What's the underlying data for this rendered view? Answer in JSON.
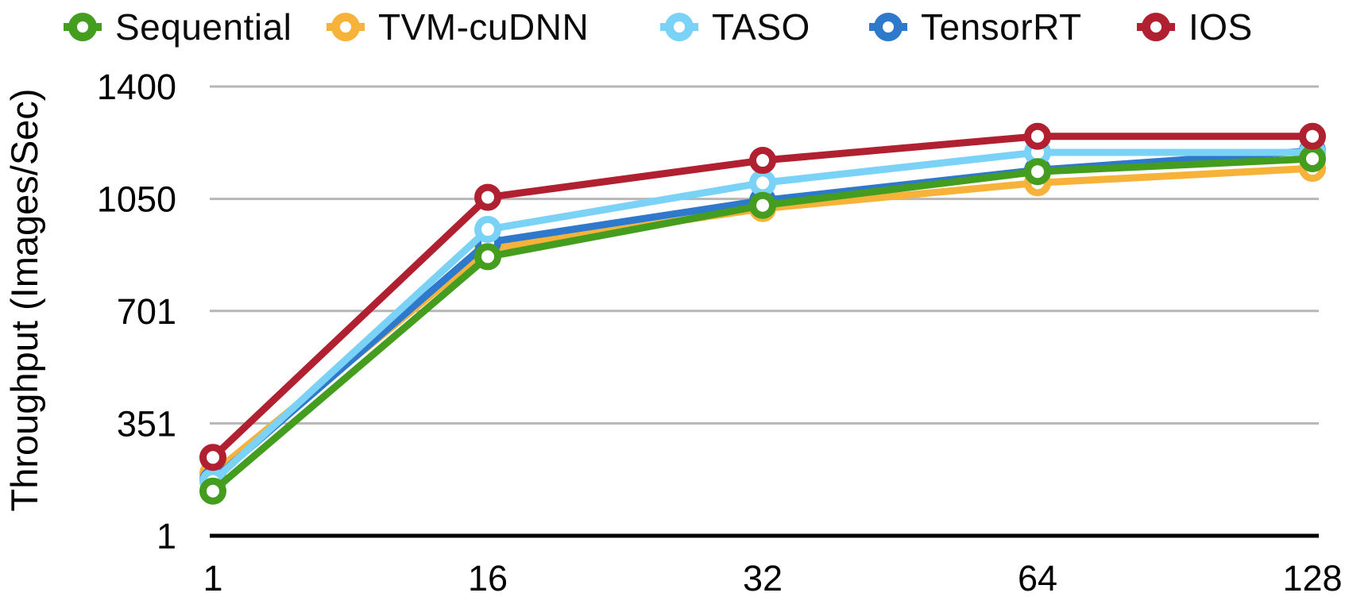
{
  "chart_data": {
    "type": "line",
    "title": "",
    "xlabel": "",
    "ylabel": "Throughput (Images/Sec)",
    "categories": [
      "1",
      "16",
      "32",
      "64",
      "128"
    ],
    "yticks": [
      1400,
      1050,
      701,
      351,
      1
    ],
    "ylim": [
      1,
      1400
    ],
    "grid": "horizontal-only",
    "gridline_color": "#b7b7b7",
    "axis_color": "#000000",
    "tick_label_color": "#000000",
    "legend_position": "top",
    "marker_style": "hollow-circle",
    "series": [
      {
        "name": "Sequential",
        "color": "#459d20",
        "values": [
          140,
          870,
          1030,
          1135,
          1175
        ]
      },
      {
        "name": "TVM-cuDNN",
        "color": "#f7b239",
        "values": [
          195,
          895,
          1020,
          1100,
          1145
        ]
      },
      {
        "name": "TASO",
        "color": "#7bd2f7",
        "values": [
          170,
          955,
          1100,
          1195,
          1195
        ]
      },
      {
        "name": "TensorRT",
        "color": "#2e79cc",
        "values": [
          175,
          915,
          1045,
          1140,
          1200
        ]
      },
      {
        "name": "IOS",
        "color": "#b02031",
        "values": [
          245,
          1055,
          1170,
          1245,
          1245
        ]
      }
    ]
  }
}
